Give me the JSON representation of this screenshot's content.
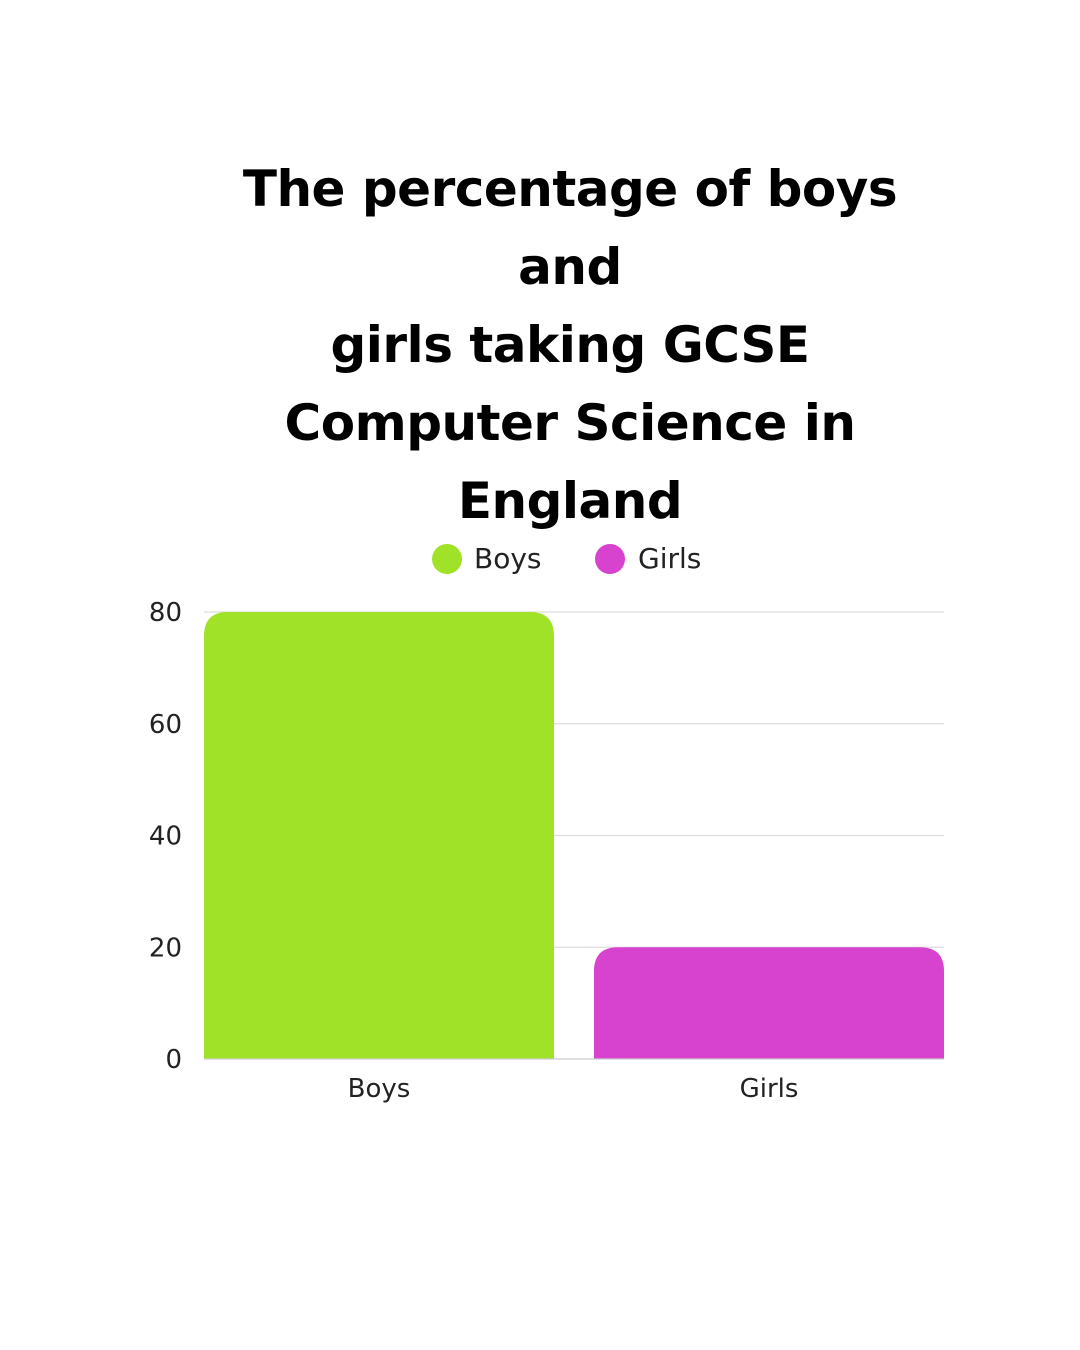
{
  "chart_data": {
    "type": "bar",
    "title_lines": [
      "The percentage of boys and",
      "girls taking GCSE",
      "Computer Science in",
      "England"
    ],
    "categories": [
      "Boys",
      "Girls"
    ],
    "series": [
      {
        "name": "Boys",
        "color": "#a0e228",
        "values": [
          80,
          null
        ]
      },
      {
        "name": "Girls",
        "color": "#d742cf",
        "values": [
          null,
          20
        ]
      }
    ],
    "values": [
      80,
      20
    ],
    "yticks": [
      "0",
      "20",
      "40",
      "60",
      "80"
    ],
    "ylim": [
      0,
      80
    ],
    "xlabel": "",
    "ylabel": "",
    "grid": true,
    "legend_position": "top-center",
    "grid_color": "#dddddd"
  }
}
